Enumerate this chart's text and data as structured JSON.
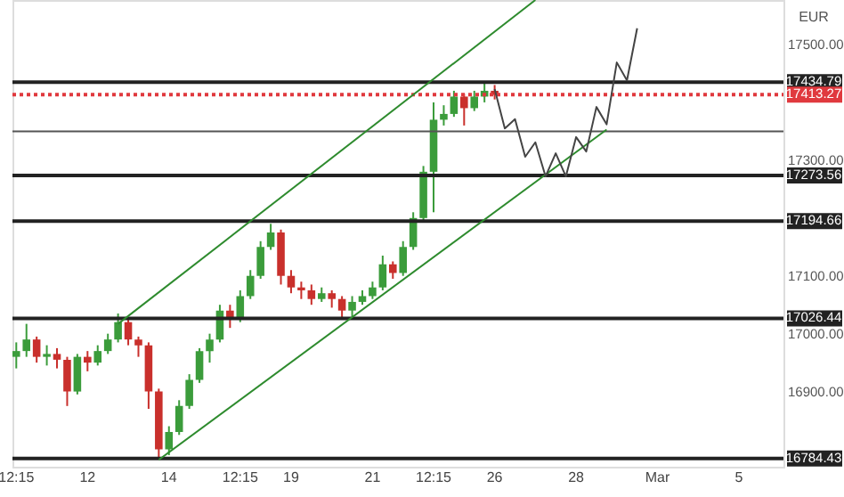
{
  "chart_data": {
    "type": "candlestick",
    "categories": [
      "12:15",
      null,
      null,
      null,
      null,
      null,
      null,
      "12",
      null,
      null,
      null,
      null,
      null,
      null,
      null,
      "14",
      null,
      null,
      null,
      null,
      null,
      null,
      "12:15",
      null,
      null,
      null,
      null,
      "19",
      null,
      null,
      null,
      null,
      null,
      null,
      null,
      "21",
      null,
      null,
      null,
      null,
      null,
      "12:15",
      null,
      null,
      null,
      null,
      null,
      "26",
      null,
      null,
      null,
      null,
      null,
      null,
      null,
      "28",
      null,
      null,
      null,
      null,
      null,
      null,
      null,
      "Mar",
      null,
      null,
      null,
      null,
      null,
      null,
      null,
      "5",
      null,
      null,
      null,
      null
    ],
    "ohlc": [
      [
        16960,
        16985,
        16940,
        16970
      ],
      [
        16970,
        17017,
        16960,
        16990
      ],
      [
        16990,
        16995,
        16950,
        16960
      ],
      [
        16960,
        16980,
        16945,
        16965
      ],
      [
        16965,
        16975,
        16940,
        16955
      ],
      [
        16955,
        16960,
        16875,
        16900
      ],
      [
        16900,
        16965,
        16895,
        16960
      ],
      [
        16960,
        16970,
        16935,
        16950
      ],
      [
        16950,
        16980,
        16945,
        16970
      ],
      [
        16970,
        17000,
        16965,
        16990
      ],
      [
        16990,
        17035,
        16985,
        17020
      ],
      [
        17020,
        17025,
        16980,
        16990
      ],
      [
        16990,
        16995,
        16960,
        16980
      ],
      [
        16980,
        16985,
        16870,
        16900
      ],
      [
        16900,
        16905,
        16786,
        16800
      ],
      [
        16800,
        16840,
        16790,
        16830
      ],
      [
        16830,
        16885,
        16825,
        16875
      ],
      [
        16875,
        16930,
        16870,
        16920
      ],
      [
        16920,
        16975,
        16915,
        16970
      ],
      [
        16970,
        17000,
        16950,
        16990
      ],
      [
        16990,
        17050,
        16985,
        17040
      ],
      [
        17040,
        17050,
        17010,
        17025
      ],
      [
        17025,
        17075,
        17020,
        17065
      ],
      [
        17065,
        17110,
        17060,
        17100
      ],
      [
        17100,
        17160,
        17095,
        17150
      ],
      [
        17150,
        17190,
        17145,
        17175
      ],
      [
        17175,
        17180,
        17085,
        17100
      ],
      [
        17100,
        17110,
        17070,
        17080
      ],
      [
        17080,
        17090,
        17060,
        17075
      ],
      [
        17075,
        17085,
        17050,
        17060
      ],
      [
        17060,
        17080,
        17055,
        17070
      ],
      [
        17070,
        17075,
        17045,
        17060
      ],
      [
        17060,
        17065,
        17025,
        17040
      ],
      [
        17040,
        17065,
        17030,
        17055
      ],
      [
        17055,
        17075,
        17050,
        17065
      ],
      [
        17065,
        17090,
        17060,
        17080
      ],
      [
        17080,
        17135,
        17075,
        17120
      ],
      [
        17120,
        17125,
        17095,
        17105
      ],
      [
        17105,
        17160,
        17100,
        17150
      ],
      [
        17150,
        17210,
        17145,
        17200
      ],
      [
        17200,
        17290,
        17195,
        17280
      ],
      [
        17280,
        17400,
        17210,
        17370
      ],
      [
        17370,
        17395,
        17360,
        17380
      ],
      [
        17380,
        17420,
        17375,
        17410
      ],
      [
        17410,
        17415,
        17360,
        17390
      ],
      [
        17390,
        17420,
        17385,
        17410
      ],
      [
        17410,
        17435,
        17400,
        17420
      ],
      [
        17420,
        17430,
        17405,
        17413
      ],
      null,
      null,
      null,
      null,
      null,
      null,
      null,
      null,
      null,
      null,
      null,
      null,
      null,
      null,
      null,
      null,
      null,
      null,
      null,
      null,
      null,
      null,
      null,
      null,
      null,
      null,
      null,
      null
    ],
    "colors": [
      "#3b9c3b",
      "#3b9c3b",
      "#c9302c",
      "#3b9c3b",
      "#c9302c",
      "#c9302c",
      "#3b9c3b",
      "#c9302c",
      "#3b9c3b",
      "#3b9c3b",
      "#3b9c3b",
      "#c9302c",
      "#c9302c",
      "#c9302c",
      "#c9302c",
      "#3b9c3b",
      "#3b9c3b",
      "#3b9c3b",
      "#3b9c3b",
      "#3b9c3b",
      "#3b9c3b",
      "#c9302c",
      "#3b9c3b",
      "#3b9c3b",
      "#3b9c3b",
      "#3b9c3b",
      "#c9302c",
      "#c9302c",
      "#c9302c",
      "#c9302c",
      "#3b9c3b",
      "#c9302c",
      "#c9302c",
      "#3b9c3b",
      "#3b9c3b",
      "#3b9c3b",
      "#3b9c3b",
      "#c9302c",
      "#3b9c3b",
      "#3b9c3b",
      "#3b9c3b",
      "#3b9c3b",
      "#3b9c3b",
      "#3b9c3b",
      "#c9302c",
      "#3b9c3b",
      "#3b9c3b",
      "#c9302c",
      null,
      null,
      null,
      null,
      null,
      null,
      null,
      null,
      null,
      null,
      null,
      null,
      null,
      null,
      null,
      null,
      null,
      null,
      null,
      null,
      null,
      null,
      null,
      null,
      null,
      null,
      null,
      null
    ],
    "series": [
      {
        "type": "line",
        "color": "#2e8b2e",
        "values": [
          null,
          null,
          null,
          null,
          null,
          null,
          null,
          null,
          null,
          null,
          17017,
          null,
          null,
          null,
          null,
          null,
          null,
          null,
          null,
          null,
          null,
          null,
          null,
          null,
          null,
          null,
          null,
          null,
          null,
          null,
          null,
          null,
          null,
          null,
          null,
          null,
          null,
          null,
          null,
          null,
          null,
          null,
          null,
          null,
          null,
          null,
          null,
          null,
          null,
          null,
          null,
          17577,
          null,
          null,
          null,
          null,
          null,
          null,
          null,
          null,
          null,
          null,
          null,
          null,
          null,
          null,
          null,
          null,
          null,
          null,
          null,
          null,
          null,
          null,
          null,
          null
        ]
      },
      {
        "type": "line",
        "color": "#2e8b2e",
        "values": [
          null,
          null,
          null,
          null,
          null,
          null,
          null,
          null,
          null,
          null,
          null,
          null,
          null,
          null,
          16782,
          null,
          null,
          null,
          null,
          null,
          null,
          null,
          null,
          null,
          null,
          null,
          null,
          null,
          null,
          null,
          null,
          null,
          null,
          null,
          null,
          null,
          null,
          null,
          null,
          null,
          null,
          null,
          null,
          null,
          null,
          null,
          null,
          null,
          null,
          null,
          null,
          null,
          null,
          null,
          null,
          null,
          null,
          null,
          17353,
          null,
          null,
          null,
          null,
          null,
          null,
          null,
          null,
          null,
          null,
          null,
          null,
          null,
          null,
          null,
          null,
          null
        ]
      },
      {
        "type": "line",
        "color": "#444444",
        "values": [
          null,
          null,
          null,
          null,
          null,
          null,
          null,
          null,
          null,
          null,
          null,
          null,
          null,
          null,
          null,
          null,
          null,
          null,
          null,
          null,
          null,
          null,
          null,
          null,
          null,
          null,
          null,
          null,
          null,
          null,
          null,
          null,
          null,
          null,
          null,
          null,
          null,
          null,
          null,
          null,
          null,
          null,
          null,
          null,
          null,
          null,
          null,
          17423,
          17355,
          17371,
          17306,
          17331,
          17272,
          17312,
          17272,
          17340,
          17315,
          17392,
          17362,
          17469,
          17438,
          17528,
          null,
          null,
          null,
          null,
          null,
          null,
          null,
          null,
          null,
          null,
          null,
          null,
          null,
          null
        ]
      }
    ],
    "ylim": [
      16770,
      17577
    ],
    "yticks": [
      {
        "value": 16900,
        "label": "16900.00"
      },
      {
        "value": 17000,
        "label": "17000.00"
      },
      {
        "value": 17100,
        "label": "17100.00"
      },
      {
        "value": 17300,
        "label": "17300.00"
      },
      {
        "value": 17500,
        "label": "17500.00"
      }
    ],
    "ref_lines": [
      {
        "axis": "y",
        "value": 17434.79,
        "label": "17434.79",
        "color": "#222222"
      },
      {
        "axis": "y",
        "value": 17413.27,
        "label": "17413.27",
        "color": "#e0393e",
        "line_style": "dotted"
      },
      {
        "axis": "y",
        "value": 17350,
        "label": null,
        "color": "#555555"
      },
      {
        "axis": "y",
        "value": 17273.56,
        "label": "17273.56",
        "color": "#222222"
      },
      {
        "axis": "y",
        "value": 17194.66,
        "label": "17194.66",
        "color": "#222222"
      },
      {
        "axis": "y",
        "value": 17026.44,
        "label": "17026.44",
        "color": "#222222"
      },
      {
        "axis": "y",
        "value": 16784.43,
        "label": "16784.43",
        "color": "#222222"
      }
    ],
    "annotations": [
      "EUR"
    ],
    "grid": false
  }
}
